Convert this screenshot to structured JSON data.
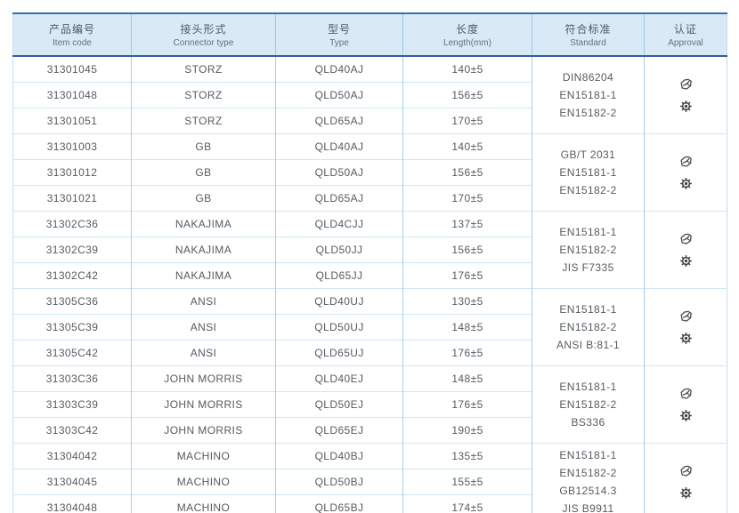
{
  "page": {
    "kind": "product-catalog-table"
  },
  "colors": {
    "header_bg": "#d9e9f6",
    "border_dark_blue": "#2d5f9f",
    "border_top_blue": "#3a6cb0",
    "grid_vertical": "#a9cfea",
    "grid_horizontal": "#cfe6f4",
    "body_text": "#565b61",
    "header_text": "#4d5d6d"
  },
  "table": {
    "columns": [
      {
        "zh": "产品编号",
        "en": "Item code"
      },
      {
        "zh": "接头形式",
        "en": "Connector type"
      },
      {
        "zh": "型号",
        "en": "Type"
      },
      {
        "zh": "长度",
        "en": "Length(mm)"
      },
      {
        "zh": "符合标准",
        "en": "Standard"
      },
      {
        "zh": "认证",
        "en": "Approval"
      }
    ],
    "approval_icons": [
      "certificate-icon",
      "gear-seal-icon"
    ],
    "groups": [
      {
        "rows": [
          {
            "code": "31301045",
            "connector": "STORZ",
            "type": "QLD40AJ",
            "length": "140±5"
          },
          {
            "code": "31301048",
            "connector": "STORZ",
            "type": "QLD50AJ",
            "length": "156±5"
          },
          {
            "code": "31301051",
            "connector": "STORZ",
            "type": "QLD65AJ",
            "length": "170±5"
          }
        ],
        "standards": [
          "DIN86204",
          "EN15181-1",
          "EN15182-2"
        ]
      },
      {
        "rows": [
          {
            "code": "31301003",
            "connector": "GB",
            "type": "QLD40AJ",
            "length": "140±5"
          },
          {
            "code": "31301012",
            "connector": "GB",
            "type": "QLD50AJ",
            "length": "156±5"
          },
          {
            "code": "31301021",
            "connector": "GB",
            "type": "QLD65AJ",
            "length": "170±5"
          }
        ],
        "standards": [
          "GB/T 2031",
          "EN15181-1",
          "EN15182-2"
        ]
      },
      {
        "rows": [
          {
            "code": "31302C36",
            "connector": "NAKAJIMA",
            "type": "QLD4CJJ",
            "length": "137±5"
          },
          {
            "code": "31302C39",
            "connector": "NAKAJIMA",
            "type": "QLD50JJ",
            "length": "156±5"
          },
          {
            "code": "31302C42",
            "connector": "NAKAJIMA",
            "type": "QLD65JJ",
            "length": "176±5"
          }
        ],
        "standards": [
          "EN15181-1",
          "EN15182-2",
          "JIS F7335"
        ]
      },
      {
        "rows": [
          {
            "code": "31305C36",
            "connector": "ANSI",
            "type": "QLD40UJ",
            "length": "130±5"
          },
          {
            "code": "31305C39",
            "connector": "ANSI",
            "type": "QLD50UJ",
            "length": "148±5"
          },
          {
            "code": "31305C42",
            "connector": "ANSI",
            "type": "QLD65UJ",
            "length": "176±5"
          }
        ],
        "standards": [
          "EN15181-1",
          "EN15182-2",
          "ANSI B:81-1"
        ]
      },
      {
        "rows": [
          {
            "code": "31303C36",
            "connector": "JOHN MORRIS",
            "type": "QLD40EJ",
            "length": "148±5"
          },
          {
            "code": "31303C39",
            "connector": "JOHN MORRIS",
            "type": "QLD50EJ",
            "length": "176±5"
          },
          {
            "code": "31303C42",
            "connector": "JOHN MORRIS",
            "type": "QLD65EJ",
            "length": "190±5"
          }
        ],
        "standards": [
          "EN15181-1",
          "EN15182-2",
          "BS336"
        ]
      },
      {
        "rows": [
          {
            "code": "31304042",
            "connector": "MACHINO",
            "type": "QLD40BJ",
            "length": "135±5"
          },
          {
            "code": "31304045",
            "connector": "MACHINO",
            "type": "QLD50BJ",
            "length": "155±5"
          },
          {
            "code": "31304048",
            "connector": "MACHINO",
            "type": "QLD65BJ",
            "length": "174±5"
          }
        ],
        "standards": [
          "EN15181-1",
          "EN15182-2",
          "GB12514.3",
          "JIS B9911"
        ]
      }
    ]
  }
}
